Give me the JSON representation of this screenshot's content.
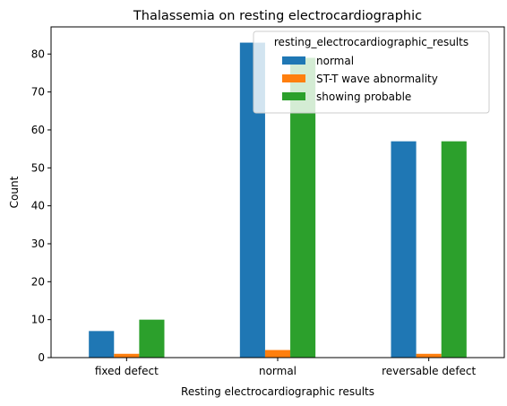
{
  "chart_data": {
    "type": "bar",
    "title": "Thalassemia on resting electrocardiographic",
    "xlabel": "Resting electrocardiographic results",
    "ylabel": "Count",
    "categories": [
      "fixed defect",
      "normal",
      "reversable defect"
    ],
    "series": [
      {
        "name": "normal",
        "color": "#1f77b4",
        "values": [
          7,
          83,
          57
        ]
      },
      {
        "name": "ST-T wave abnormality",
        "color": "#ff7f0e",
        "values": [
          1,
          2,
          1
        ]
      },
      {
        "name": "showing probable",
        "color": "#2ca02c",
        "values": [
          10,
          79,
          57
        ]
      }
    ],
    "ylim": [
      0,
      87.15
    ],
    "yticks": [
      0,
      10,
      20,
      30,
      40,
      50,
      60,
      70,
      80
    ],
    "grid": false,
    "legend": {
      "title": "resting_electrocardiographic_results",
      "position": "top-right"
    }
  }
}
